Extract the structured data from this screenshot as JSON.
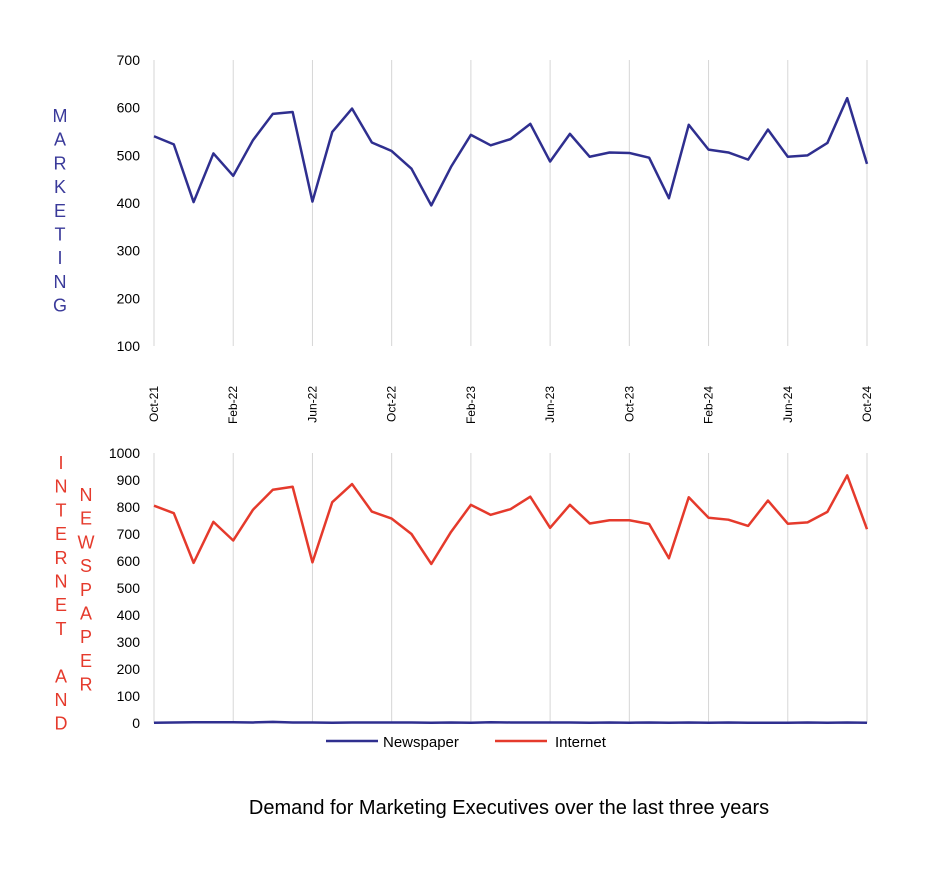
{
  "colors": {
    "marketing_axis_title": "#3A3A9A",
    "internet_axis_title": "#E53A2C",
    "newspaper_axis_title": "#E53A2C",
    "newspaper_line": "#2F2F8F",
    "internet_line": "#E53A2C",
    "gridline": "#D6D6D6",
    "axis_line": "#D6D6D6",
    "tick_text": "#000000"
  },
  "caption": "Demand for Marketing Executives over the last three years",
  "chart_data": [
    {
      "type": "line",
      "ylabel": "MARKETING",
      "ylabel_letters": [
        "M",
        "A",
        "R",
        "K",
        "E",
        "T",
        "I",
        "N",
        "G"
      ],
      "ylim": [
        100,
        700
      ],
      "yticks": [
        700,
        600,
        500,
        400,
        300,
        200,
        100
      ],
      "xtick_labels": [
        "Oct-21",
        "Feb-22",
        "Jun-22",
        "Oct-22",
        "Feb-23",
        "Jun-23",
        "Oct-23",
        "Feb-24",
        "Jun-24",
        "Oct-24"
      ],
      "xtick_every": 4,
      "grid": "vertical",
      "series": [
        {
          "name": "Marketing",
          "color": "#2F2F8F",
          "values": [
            540,
            523,
            402,
            504,
            457,
            532,
            587,
            591,
            403,
            549,
            598,
            527,
            509,
            472,
            395,
            476,
            543,
            521,
            534,
            566,
            487,
            545,
            497,
            506,
            505,
            495,
            410,
            564,
            512,
            506,
            491,
            554,
            497,
            500,
            526,
            620,
            482
          ]
        }
      ]
    },
    {
      "type": "line",
      "ylabel_left": "INTERNET AND",
      "ylabel_left_letters": [
        "I",
        "N",
        "T",
        "E",
        "R",
        "N",
        "E",
        "T",
        "",
        "A",
        "N",
        "D"
      ],
      "ylabel_right": "NEWSPAPER",
      "ylabel_right_letters": [
        "N",
        "E",
        "W",
        "S",
        "P",
        "A",
        "P",
        "E",
        "R"
      ],
      "ylim": [
        0,
        1000
      ],
      "yticks": [
        1000,
        900,
        800,
        700,
        600,
        500,
        400,
        300,
        200,
        100,
        0
      ],
      "grid": "vertical",
      "legend": "bottom",
      "series": [
        {
          "name": "Newspaper",
          "color": "#2F2F8F",
          "values": [
            1,
            2,
            3,
            3,
            3,
            2,
            4,
            2,
            2,
            1,
            2,
            2,
            2,
            2,
            1,
            2,
            1,
            3,
            2,
            2,
            2,
            2,
            1,
            2,
            1,
            2,
            1,
            2,
            1,
            2,
            1,
            1,
            1,
            2,
            1,
            2,
            1
          ]
        },
        {
          "name": "Internet",
          "color": "#E53A2C",
          "values": [
            805,
            777,
            593,
            745,
            676,
            790,
            864,
            875,
            595,
            818,
            885,
            783,
            757,
            700,
            589,
            708,
            808,
            771,
            792,
            838,
            723,
            808,
            739,
            751,
            751,
            737,
            610,
            836,
            760,
            753,
            730,
            824,
            738,
            743,
            782,
            917,
            718
          ]
        }
      ]
    }
  ]
}
